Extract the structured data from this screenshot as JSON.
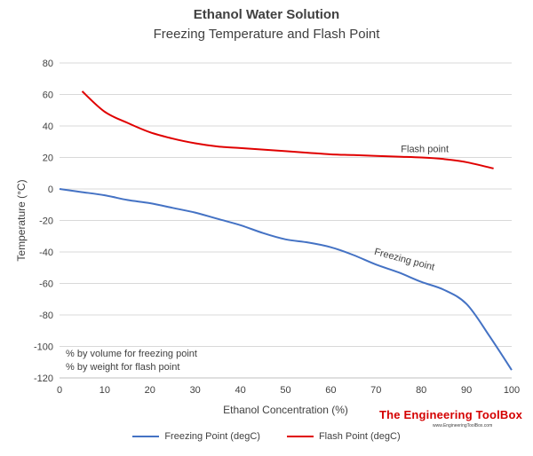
{
  "chart_data": {
    "type": "line",
    "title": "Ethanol Water Solution",
    "subtitle": "Freezing Temperature and Flash Point",
    "xlabel": "Ethanol Concentration (%)",
    "ylabel": "Temperature (°C)",
    "xlim": [
      0,
      100
    ],
    "ylim": [
      -120,
      80
    ],
    "x_ticks": [
      0,
      10,
      20,
      30,
      40,
      50,
      60,
      70,
      80,
      90,
      100
    ],
    "y_ticks": [
      -120,
      -100,
      -80,
      -60,
      -40,
      -20,
      0,
      20,
      40,
      60,
      80
    ],
    "grid": true,
    "legend_position": "bottom",
    "series": [
      {
        "name": "Freezing Point (degC)",
        "color": "#4472c4",
        "label": "Freezing point",
        "x": [
          0,
          5,
          10,
          15,
          20,
          25,
          30,
          35,
          40,
          45,
          50,
          55,
          60,
          65,
          70,
          75,
          80,
          85,
          90,
          95,
          100
        ],
        "y": [
          0,
          -2,
          -4,
          -7,
          -9,
          -12,
          -15,
          -19,
          -23,
          -28,
          -32,
          -34,
          -37,
          -42,
          -48,
          -53,
          -59,
          -64,
          -73,
          -93,
          -115
        ]
      },
      {
        "name": "Flash Point (degC)",
        "color": "#e00000",
        "label": "Flash point",
        "x": [
          5,
          10,
          15,
          20,
          25,
          30,
          35,
          40,
          45,
          50,
          55,
          60,
          65,
          70,
          75,
          80,
          85,
          90,
          96
        ],
        "y": [
          62,
          49,
          42,
          36,
          32,
          29,
          27,
          26,
          25,
          24,
          23,
          22,
          21.5,
          21,
          20.5,
          20,
          19,
          17,
          13
        ]
      }
    ],
    "notes": [
      "% by volume for freezing point",
      "% by weight for flash point"
    ]
  },
  "branding": {
    "name": "The Engineering ToolBox",
    "url": "www.EngineeringToolBox.com"
  }
}
